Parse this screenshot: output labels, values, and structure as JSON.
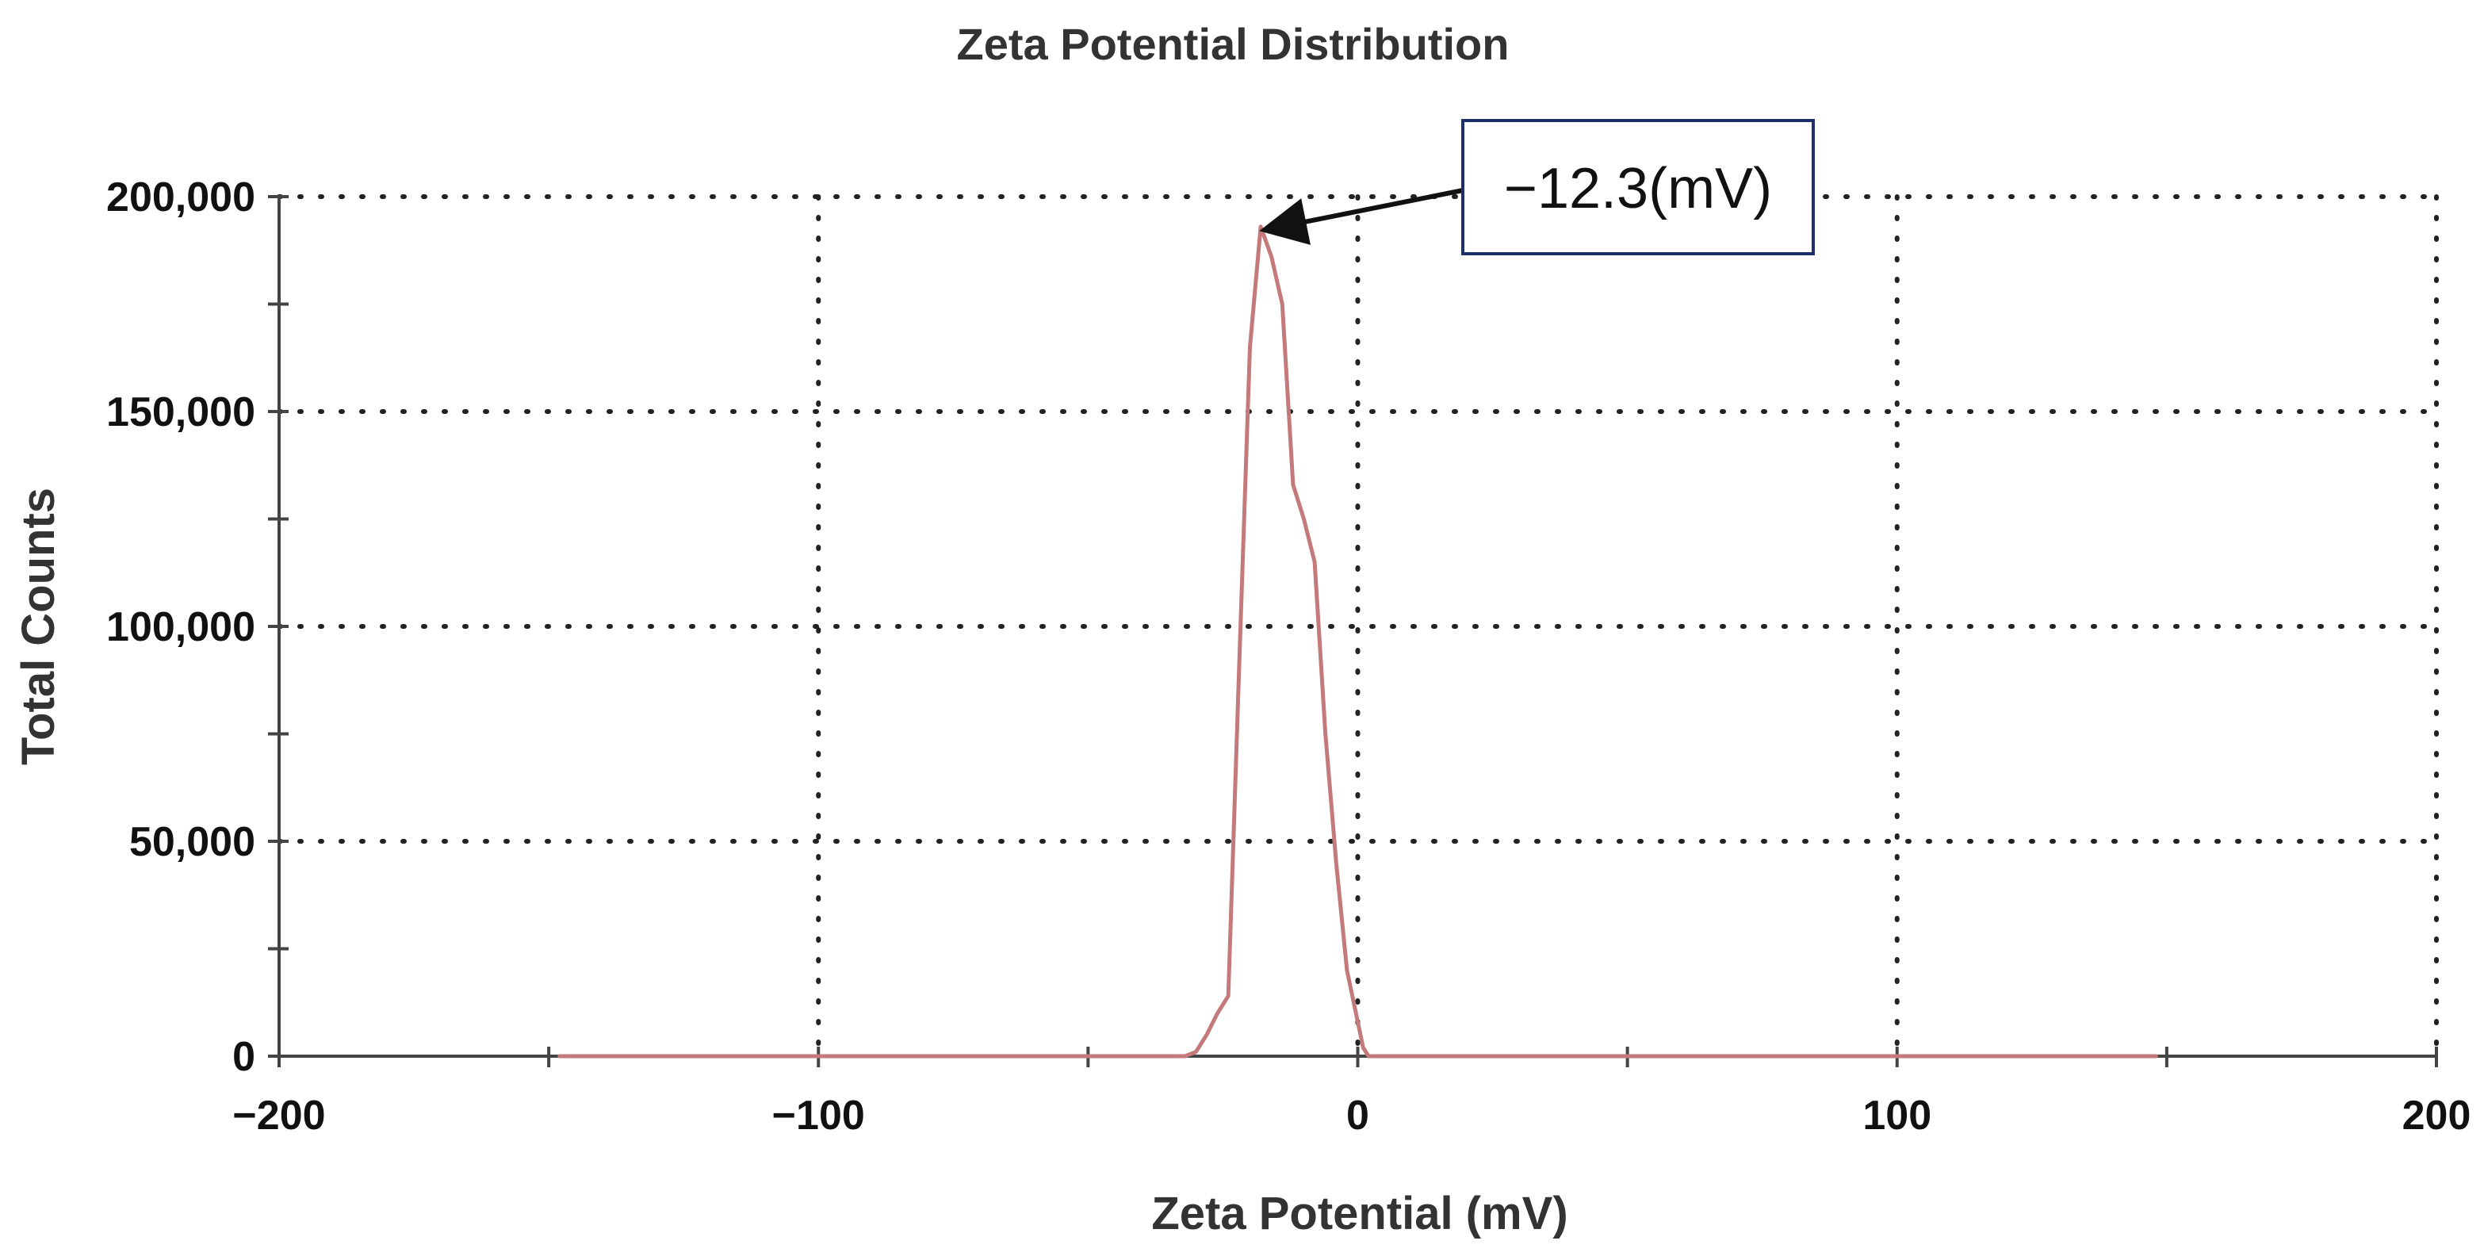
{
  "chart_data": {
    "type": "line",
    "title": "Zeta Potential Distribution",
    "xlabel": "Zeta Potential (mV)",
    "ylabel": "Total Counts",
    "xlim": [
      -200,
      200
    ],
    "ylim": [
      0,
      200000
    ],
    "x_ticks": [
      -200,
      -100,
      0,
      100,
      200
    ],
    "x_tick_labels": [
      "−200",
      "−100",
      "0",
      "100",
      "200"
    ],
    "x_minor_ticks": [
      -150,
      -50,
      50,
      150
    ],
    "y_ticks": [
      0,
      50000,
      100000,
      150000,
      200000
    ],
    "y_tick_labels": [
      "0",
      "50,000",
      "100,000",
      "150,000",
      "200,000"
    ],
    "y_minor_ticks": [
      25000,
      75000,
      125000,
      175000
    ],
    "grid": true,
    "series": [
      {
        "name": "Zeta potential distribution",
        "color": "#c47a7a",
        "x": [
          -148,
          -50,
          -32,
          -30,
          -28,
          -26,
          -24,
          -22,
          -20,
          -18,
          -16,
          -14,
          -12,
          -10,
          -8,
          -6,
          -4,
          -2,
          0,
          1,
          2,
          4,
          10,
          148
        ],
        "y": [
          0,
          0,
          0,
          1000,
          5000,
          10000,
          14000,
          90000,
          165000,
          193000,
          186000,
          175000,
          133000,
          125000,
          115000,
          75000,
          45000,
          20000,
          8000,
          2000,
          0,
          0,
          0,
          0
        ]
      }
    ],
    "annotations": [
      {
        "text": "−12.3(mV)",
        "target_x": -18,
        "target_y": 193000
      }
    ],
    "colors": {
      "line": "#c47a7a",
      "axis": "#444444",
      "grid": "#222222",
      "annotation_border": "#1f2f6b",
      "arrow": "#111111"
    }
  }
}
